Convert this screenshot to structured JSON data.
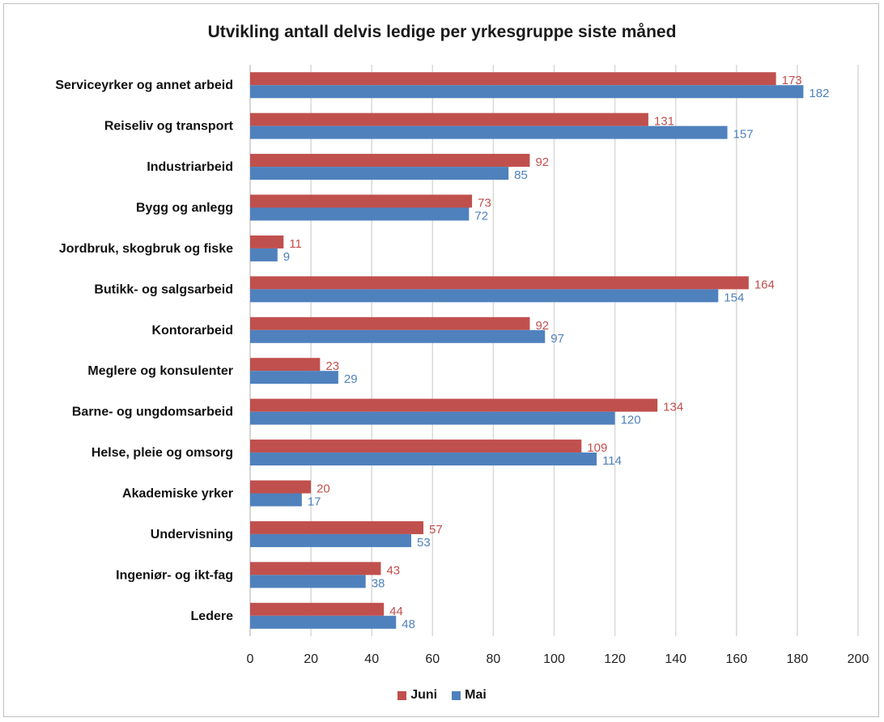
{
  "chart_data": {
    "type": "bar",
    "orientation": "horizontal",
    "title": "Utvikling antall delvis ledige per yrkesgruppe siste måned",
    "categories": [
      "Serviceyrker og annet arbeid",
      "Reiseliv og transport",
      "Industriarbeid",
      "Bygg og anlegg",
      "Jordbruk, skogbruk og fiske",
      "Butikk- og salgsarbeid",
      "Kontorarbeid",
      "Meglere og konsulenter",
      "Barne- og ungdomsarbeid",
      "Helse, pleie og omsorg",
      "Akademiske yrker",
      "Undervisning",
      "Ingeniør- og ikt-fag",
      "Ledere"
    ],
    "series": [
      {
        "name": "Juni",
        "color": "#c0504d",
        "values": [
          173,
          131,
          92,
          73,
          11,
          164,
          92,
          23,
          134,
          109,
          20,
          57,
          43,
          44
        ]
      },
      {
        "name": "Mai",
        "color": "#4f81bd",
        "values": [
          182,
          157,
          85,
          72,
          9,
          154,
          97,
          29,
          120,
          114,
          17,
          53,
          38,
          48
        ]
      }
    ],
    "xlim": [
      0,
      200
    ],
    "xticks": [
      0,
      20,
      40,
      60,
      80,
      100,
      120,
      140,
      160,
      180,
      200
    ],
    "grid": "vertical",
    "legend": "bottom-center"
  }
}
